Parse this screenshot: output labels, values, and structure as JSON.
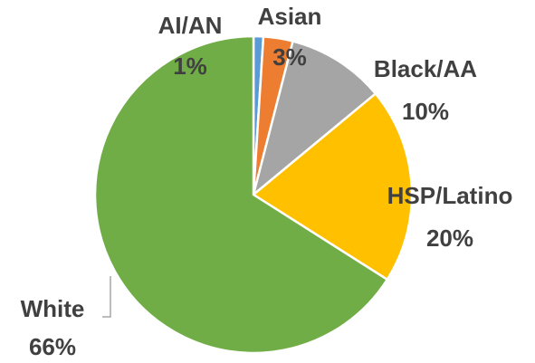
{
  "chart_data": {
    "type": "pie",
    "categories": [
      "AI/AN",
      "Asian",
      "Black/AA",
      "HSP/Latino",
      "White"
    ],
    "values": [
      1,
      3,
      10,
      20,
      66
    ],
    "value_labels": [
      "1%",
      "3%",
      "10%",
      "20%",
      "66%"
    ],
    "colors": [
      "#5b9bd5",
      "#ed7d31",
      "#a5a5a5",
      "#ffc000",
      "#70ad47"
    ]
  }
}
